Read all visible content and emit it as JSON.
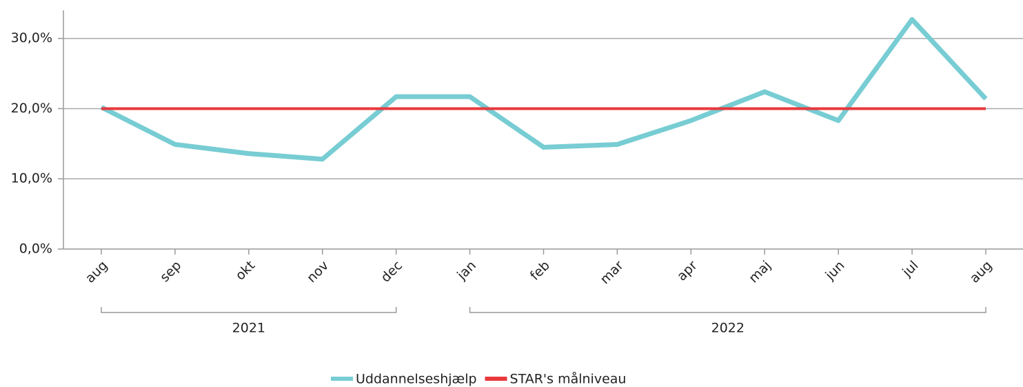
{
  "chart_data": {
    "type": "line",
    "categories": [
      "aug",
      "sep",
      "okt",
      "nov",
      "dec",
      "jan",
      "feb",
      "mar",
      "apr",
      "maj",
      "jun",
      "jul",
      "aug"
    ],
    "groups": [
      {
        "label": "2021",
        "start": 0,
        "end": 4
      },
      {
        "label": "2022",
        "start": 5,
        "end": 12
      }
    ],
    "series": [
      {
        "name": "Uddannelseshjælp",
        "color": "#77cdd3",
        "values": [
          20.2,
          14.9,
          13.6,
          12.8,
          21.7,
          21.7,
          14.5,
          14.9,
          18.3,
          22.4,
          18.3,
          32.7,
          21.4
        ]
      },
      {
        "name": "STAR's målniveau",
        "color": "#e8383d",
        "values": [
          20,
          20,
          20,
          20,
          20,
          20,
          20,
          20,
          20,
          20,
          20,
          20,
          20
        ]
      }
    ],
    "ylim": [
      0,
      34
    ],
    "yticks": [
      {
        "value": 0,
        "label": "0,0%"
      },
      {
        "value": 10,
        "label": "10,0%"
      },
      {
        "value": 20,
        "label": "20,0%"
      },
      {
        "value": 30,
        "label": "30,0%"
      }
    ],
    "grid": true,
    "legend": "bottom"
  }
}
